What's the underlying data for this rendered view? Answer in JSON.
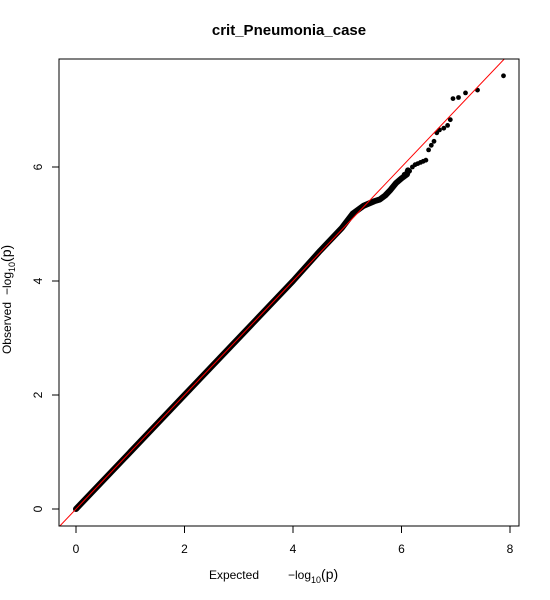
{
  "colors": {
    "points": "#000000",
    "reference_line": "#ff0000",
    "axes": "#000000",
    "background": "#ffffff"
  },
  "chart_data": {
    "type": "scatter",
    "title": "crit_Pneumonia_case",
    "xlabel": "Expected",
    "ylabel": "Observed",
    "axis_math": {
      "prefix": "−log",
      "subscript": "10",
      "argument": "(p)"
    },
    "xlim": [
      0,
      7.9
    ],
    "ylim": [
      0,
      7.6
    ],
    "x_ticks": [
      0,
      2,
      4,
      6,
      8
    ],
    "y_ticks": [
      0,
      2,
      4,
      6
    ],
    "grid": false,
    "reference_line": {
      "intercept": 0,
      "slope": 1,
      "color": "#ff0000"
    },
    "body_curve": [
      [
        0.0,
        0.0
      ],
      [
        1.0,
        1.0
      ],
      [
        2.0,
        2.0
      ],
      [
        3.0,
        3.0
      ],
      [
        4.0,
        4.0
      ],
      [
        4.5,
        4.53
      ],
      [
        4.9,
        4.93
      ],
      [
        5.1,
        5.18
      ],
      [
        5.3,
        5.32
      ],
      [
        5.5,
        5.4
      ],
      [
        5.6,
        5.43
      ],
      [
        5.7,
        5.5
      ],
      [
        5.8,
        5.6
      ],
      [
        5.9,
        5.72
      ],
      [
        6.0,
        5.8
      ],
      [
        6.1,
        5.87
      ],
      [
        6.12,
        5.94
      ]
    ],
    "tail_points": [
      [
        6.05,
        5.87
      ],
      [
        6.1,
        5.9
      ],
      [
        6.15,
        5.93
      ],
      [
        6.2,
        6.0
      ],
      [
        6.25,
        6.04
      ],
      [
        6.3,
        6.06
      ],
      [
        6.35,
        6.08
      ],
      [
        6.4,
        6.1
      ],
      [
        6.45,
        6.12
      ],
      [
        6.5,
        6.3
      ],
      [
        6.55,
        6.38
      ],
      [
        6.6,
        6.45
      ],
      [
        6.65,
        6.6
      ],
      [
        6.7,
        6.65
      ],
      [
        6.78,
        6.68
      ],
      [
        6.85,
        6.73
      ],
      [
        6.9,
        6.83
      ],
      [
        6.95,
        7.2
      ],
      [
        7.05,
        7.22
      ],
      [
        7.18,
        7.3
      ],
      [
        7.4,
        7.35
      ],
      [
        7.88,
        7.6
      ]
    ]
  }
}
